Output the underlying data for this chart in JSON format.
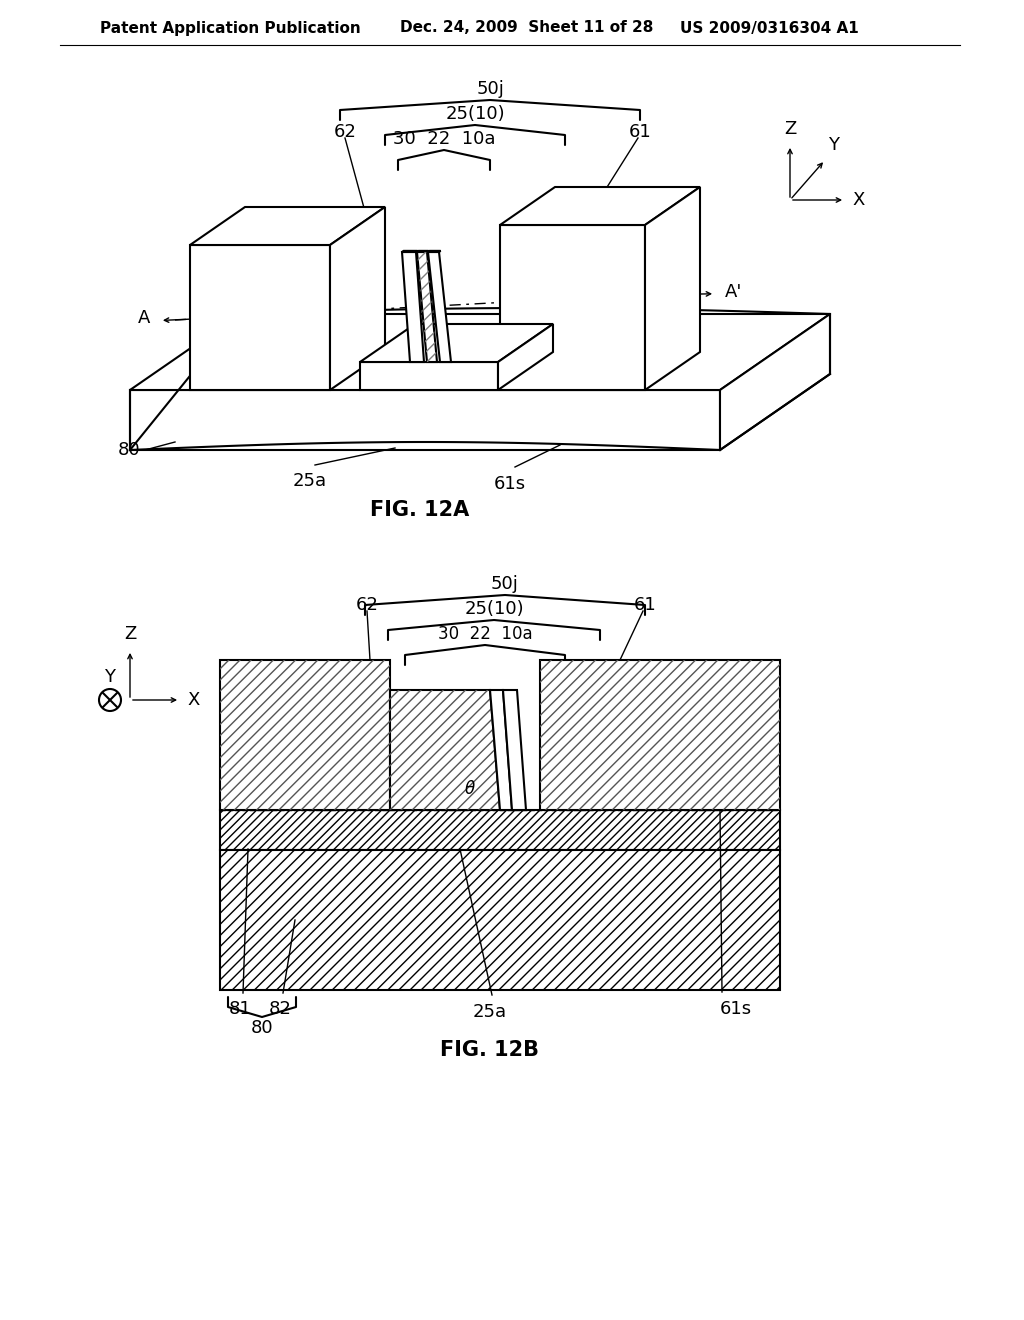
{
  "bg_color": "#ffffff",
  "line_color": "#000000",
  "header_text1": "Patent Application Publication",
  "header_text2": "Dec. 24, 2009  Sheet 11 of 28",
  "header_text3": "US 2009/0316304 A1",
  "fig12a_label": "FIG. 12A",
  "fig12b_label": "FIG. 12B",
  "header_fontsize": 11,
  "label_fontsize": 15,
  "annot_fontsize": 13
}
